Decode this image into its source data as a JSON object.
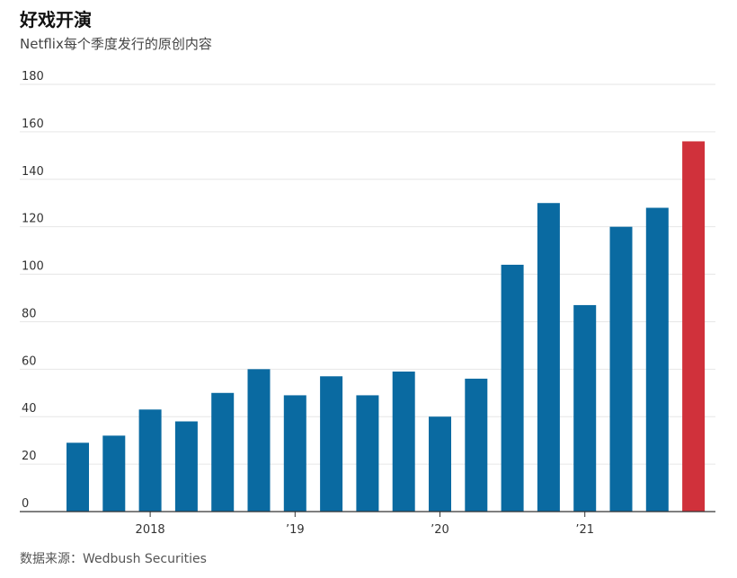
{
  "header": {
    "title": "好戏开演",
    "subtitle": "Netflix每个季度发行的原创内容"
  },
  "footer": {
    "source": "数据来源：Wedbush Securities"
  },
  "colors": {
    "bar": "#0a6aa1",
    "highlight": "#d0313b",
    "grid": "#e6e6e6",
    "axis": "#333333"
  },
  "chart_data": {
    "type": "bar",
    "title": "好戏开演",
    "subtitle": "Netflix每个季度发行的原创内容",
    "ylim": [
      0,
      180
    ],
    "yticks": [
      0,
      20,
      40,
      60,
      80,
      100,
      120,
      140,
      160,
      180
    ],
    "x_year_labels": [
      {
        "label": "2018",
        "after_bar_index": 2
      },
      {
        "label": "’19",
        "after_bar_index": 6
      },
      {
        "label": "’20",
        "after_bar_index": 10
      },
      {
        "label": "’21",
        "after_bar_index": 14
      }
    ],
    "values": [
      29,
      32,
      43,
      38,
      50,
      60,
      49,
      57,
      49,
      59,
      40,
      56,
      104,
      130,
      87,
      120,
      128,
      156
    ],
    "highlight_index": 17,
    "grid": true
  }
}
